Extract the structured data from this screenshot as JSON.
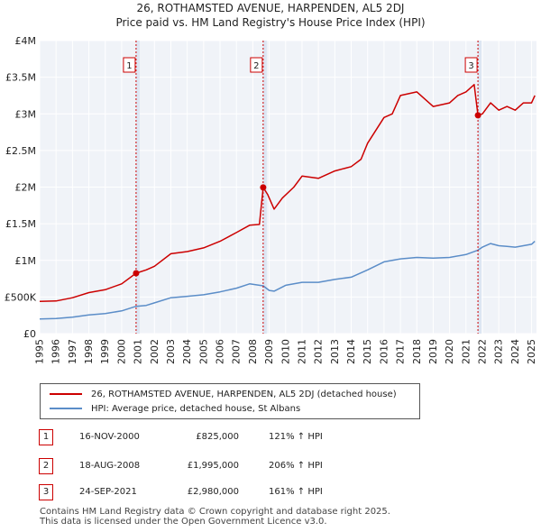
{
  "title_line1": "26, ROTHAMSTED AVENUE, HARPENDEN, AL5 2DJ",
  "title_line2": "Price paid vs. HM Land Registry's House Price Index (HPI)",
  "chart_data": {
    "type": "line",
    "title": "26, ROTHAMSTED AVENUE, HARPENDEN, AL5 2DJ — Price paid vs. HM Land Registry's House Price Index (HPI)",
    "xlabel": "",
    "ylabel": "",
    "xlim": [
      1995,
      2025.3
    ],
    "ylim": [
      0,
      4000000
    ],
    "x_ticks": [
      1995,
      1996,
      1997,
      1998,
      1999,
      2000,
      2001,
      2002,
      2003,
      2004,
      2005,
      2006,
      2007,
      2008,
      2009,
      2010,
      2011,
      2012,
      2013,
      2014,
      2015,
      2016,
      2017,
      2018,
      2019,
      2020,
      2021,
      2022,
      2023,
      2024,
      2025
    ],
    "y_ticks": [
      {
        "value": 0,
        "label": "£0"
      },
      {
        "value": 500000,
        "label": "£500K"
      },
      {
        "value": 1000000,
        "label": "£1M"
      },
      {
        "value": 1500000,
        "label": "£1.5M"
      },
      {
        "value": 2000000,
        "label": "£2M"
      },
      {
        "value": 2500000,
        "label": "£2.5M"
      },
      {
        "value": 3000000,
        "label": "£3M"
      },
      {
        "value": 3500000,
        "label": "£3.5M"
      },
      {
        "value": 4000000,
        "label": "£4M"
      }
    ],
    "grid": true,
    "series": [
      {
        "name": "26, ROTHAMSTED AVENUE, HARPENDEN, AL5 2DJ (detached house)",
        "color": "#cc0000",
        "x": [
          1995.0,
          1996.0,
          1997.0,
          1998.0,
          1999.0,
          2000.0,
          2000.88,
          2001.5,
          2002.0,
          2003.0,
          2004.0,
          2005.0,
          2006.0,
          2007.0,
          2007.8,
          2008.4,
          2008.63,
          2008.9,
          2009.3,
          2009.8,
          2010.5,
          2011.0,
          2012.0,
          2013.0,
          2014.0,
          2014.6,
          2015.0,
          2016.0,
          2016.5,
          2017.0,
          2018.0,
          2019.0,
          2020.0,
          2020.5,
          2021.0,
          2021.5,
          2021.73,
          2022.0,
          2022.5,
          2023.0,
          2023.5,
          2024.0,
          2024.5,
          2025.0,
          2025.2
        ],
        "values": [
          440000,
          445000,
          490000,
          560000,
          600000,
          680000,
          825000,
          870000,
          920000,
          1090000,
          1120000,
          1170000,
          1260000,
          1380000,
          1480000,
          1490000,
          1995000,
          1900000,
          1700000,
          1850000,
          2000000,
          2150000,
          2120000,
          2220000,
          2280000,
          2380000,
          2600000,
          2950000,
          3000000,
          3250000,
          3300000,
          3100000,
          3150000,
          3250000,
          3300000,
          3400000,
          2980000,
          3000000,
          3150000,
          3050000,
          3100000,
          3050000,
          3150000,
          3150000,
          3250000
        ]
      },
      {
        "name": "HPI: Average price, detached house, St Albans",
        "color": "#5b8dc8",
        "x": [
          1995.0,
          1996.0,
          1997.0,
          1998.0,
          1999.0,
          2000.0,
          2000.88,
          2001.5,
          2002.0,
          2003.0,
          2004.0,
          2005.0,
          2006.0,
          2007.0,
          2007.8,
          2008.63,
          2009.0,
          2009.3,
          2010.0,
          2011.0,
          2012.0,
          2013.0,
          2014.0,
          2015.0,
          2016.0,
          2017.0,
          2018.0,
          2019.0,
          2020.0,
          2021.0,
          2021.73,
          2022.0,
          2022.5,
          2023.0,
          2023.5,
          2024.0,
          2024.5,
          2025.0,
          2025.2
        ],
        "values": [
          200000,
          205000,
          225000,
          255000,
          275000,
          310000,
          373000,
          385000,
          420000,
          490000,
          510000,
          530000,
          570000,
          620000,
          680000,
          652000,
          590000,
          580000,
          660000,
          700000,
          700000,
          740000,
          770000,
          870000,
          980000,
          1020000,
          1040000,
          1030000,
          1040000,
          1080000,
          1140000,
          1180000,
          1230000,
          1200000,
          1190000,
          1180000,
          1200000,
          1220000,
          1260000
        ]
      }
    ],
    "markers": [
      {
        "label": "1",
        "x": 2000.88,
        "value": 825000
      },
      {
        "label": "2",
        "x": 2008.63,
        "value": 1995000
      },
      {
        "label": "3",
        "x": 2021.73,
        "value": 2980000
      }
    ],
    "marker_color": "#cc0000"
  },
  "legend": {
    "property_label": "26, ROTHAMSTED AVENUE, HARPENDEN, AL5 2DJ (detached house)",
    "hpi_label": "HPI: Average price, detached house, St Albans",
    "property_color": "#cc0000",
    "hpi_color": "#5b8dc8"
  },
  "transactions": [
    {
      "num": "1",
      "date": "16-NOV-2000",
      "price": "£825,000",
      "hpi": "121% ↑ HPI"
    },
    {
      "num": "2",
      "date": "18-AUG-2008",
      "price": "£1,995,000",
      "hpi": "206% ↑ HPI"
    },
    {
      "num": "3",
      "date": "24-SEP-2021",
      "price": "£2,980,000",
      "hpi": "161% ↑ HPI"
    }
  ],
  "footer": {
    "line1": "Contains HM Land Registry data © Crown copyright and database right 2025.",
    "line2": "This data is licensed under the Open Government Licence v3.0."
  }
}
